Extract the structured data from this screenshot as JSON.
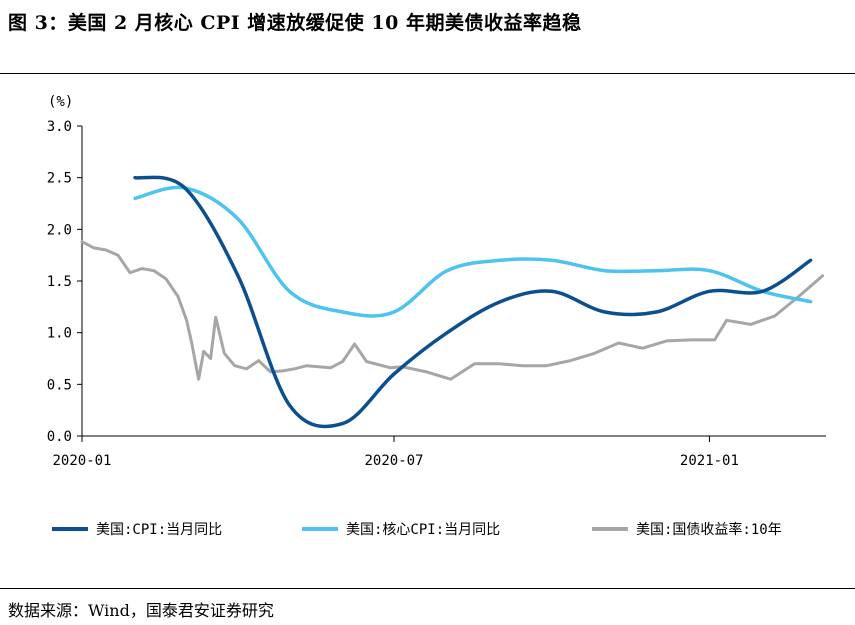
{
  "title": "图 3：美国 2 月核心 CPI 增速放缓促使 10 年期美债收益率趋稳",
  "source": "数据来源：Wind，国泰君安证券研究",
  "chart_data": {
    "type": "line",
    "unit_label": "(%)",
    "ylim": [
      0.0,
      3.0
    ],
    "yticks": [
      "0.0",
      "0.5",
      "1.0",
      "1.5",
      "2.0",
      "2.5",
      "3.0"
    ],
    "xlim": [
      "2020-01",
      "2021-03-10"
    ],
    "xticks": [
      "2020-01",
      "2020-07",
      "2021-01"
    ],
    "grid": false,
    "legend_position": "bottom",
    "series": [
      {
        "name": "美国:CPI:当月同比",
        "color": "#0b4f8f",
        "x": [
          "2020-02",
          "2020-03",
          "2020-04",
          "2020-05",
          "2020-06",
          "2020-07",
          "2020-08",
          "2020-09",
          "2020-10",
          "2020-11",
          "2020-12",
          "2021-01",
          "2021-02",
          "2021-03"
        ],
        "values": [
          2.5,
          2.4,
          1.55,
          0.3,
          0.12,
          0.6,
          1.0,
          1.3,
          1.4,
          1.2,
          1.2,
          1.4,
          1.4,
          1.7
        ]
      },
      {
        "name": "美国:核心CPI:当月同比",
        "color": "#4dc3f0",
        "x": [
          "2020-02",
          "2020-03",
          "2020-04",
          "2020-05",
          "2020-06",
          "2020-07",
          "2020-08",
          "2020-09",
          "2020-10",
          "2020-11",
          "2020-12",
          "2021-01",
          "2021-02",
          "2021-03"
        ],
        "values": [
          2.3,
          2.4,
          2.1,
          1.4,
          1.2,
          1.2,
          1.6,
          1.7,
          1.7,
          1.6,
          1.6,
          1.6,
          1.4,
          1.3
        ]
      },
      {
        "name": "美国:国债收益率:10年",
        "color": "#a6a6a6",
        "x": [
          "2020-01-01",
          "2020-01-08",
          "2020-01-15",
          "2020-01-22",
          "2020-01-29",
          "2020-02-05",
          "2020-02-12",
          "2020-02-19",
          "2020-02-26",
          "2020-03-02",
          "2020-03-05",
          "2020-03-09",
          "2020-03-12",
          "2020-03-16",
          "2020-03-19",
          "2020-03-24",
          "2020-03-30",
          "2020-04-06",
          "2020-04-13",
          "2020-04-20",
          "2020-04-27",
          "2020-05-04",
          "2020-05-11",
          "2020-05-18",
          "2020-05-25",
          "2020-06-01",
          "2020-06-08",
          "2020-06-15",
          "2020-06-22",
          "2020-06-29",
          "2020-07-06",
          "2020-07-20",
          "2020-08-03",
          "2020-08-17",
          "2020-08-31",
          "2020-09-14",
          "2020-09-28",
          "2020-10-12",
          "2020-10-26",
          "2020-11-09",
          "2020-11-23",
          "2020-12-07",
          "2020-12-21",
          "2021-01-04",
          "2021-01-11",
          "2021-01-25",
          "2021-02-08",
          "2021-02-22",
          "2021-03-01",
          "2021-03-08"
        ],
        "values": [
          1.88,
          1.82,
          1.8,
          1.75,
          1.58,
          1.62,
          1.6,
          1.52,
          1.35,
          1.12,
          0.9,
          0.55,
          0.82,
          0.75,
          1.15,
          0.8,
          0.68,
          0.65,
          0.73,
          0.62,
          0.63,
          0.65,
          0.68,
          0.67,
          0.66,
          0.72,
          0.89,
          0.72,
          0.69,
          0.66,
          0.67,
          0.62,
          0.55,
          0.7,
          0.7,
          0.68,
          0.68,
          0.73,
          0.8,
          0.9,
          0.85,
          0.92,
          0.93,
          0.93,
          1.12,
          1.08,
          1.16,
          1.35,
          1.45,
          1.55
        ]
      }
    ]
  }
}
